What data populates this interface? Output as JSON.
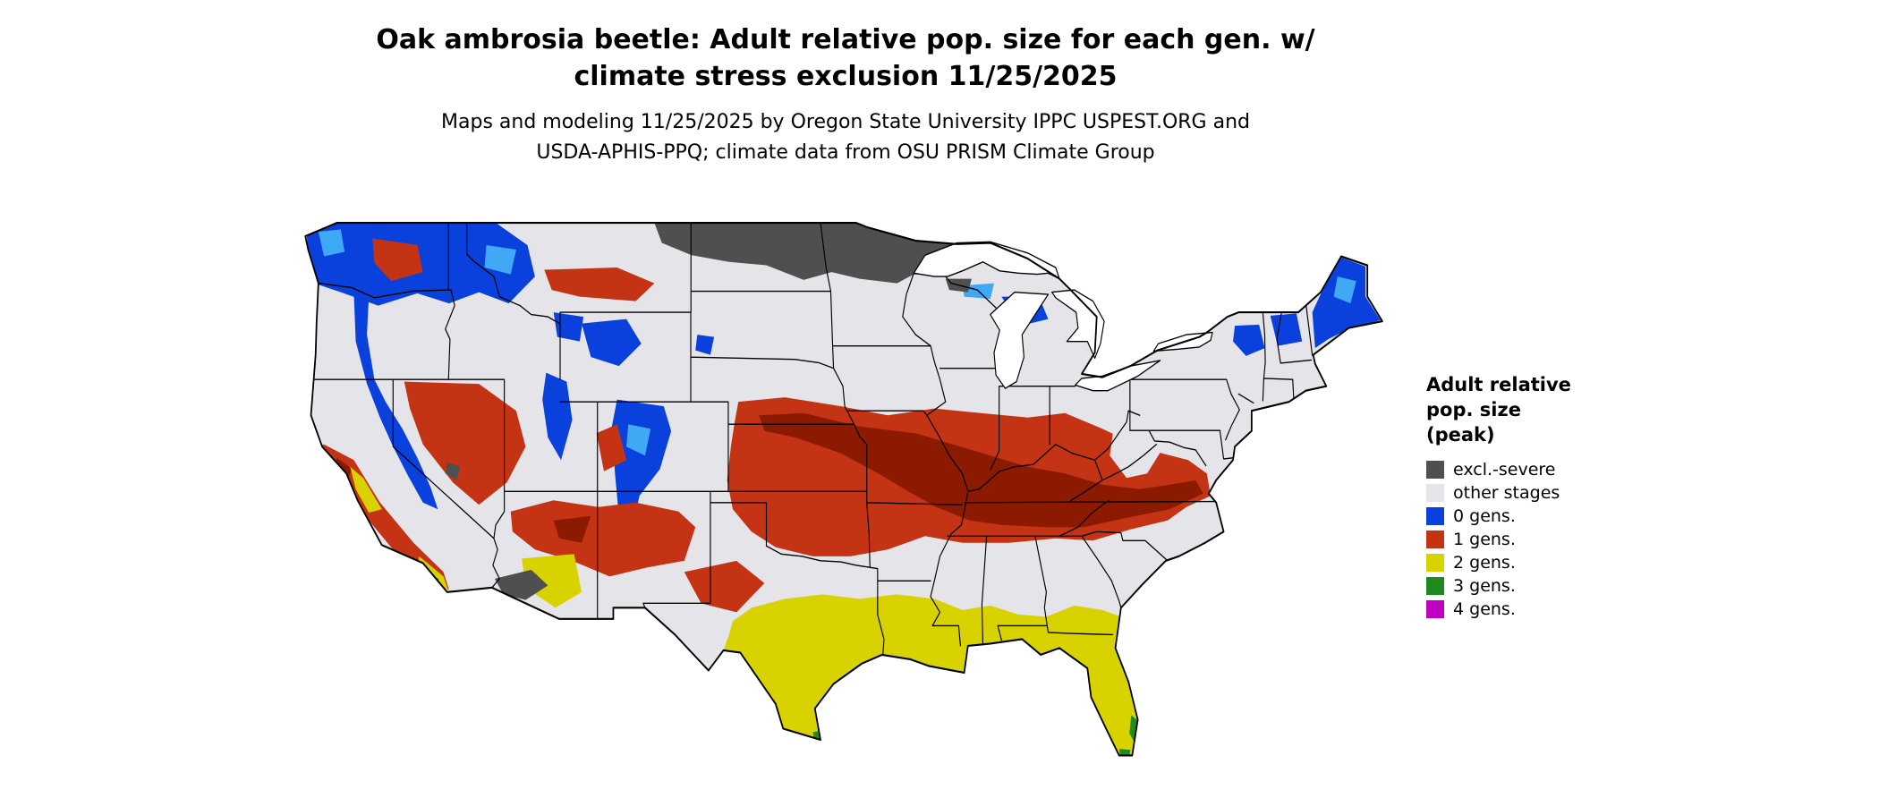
{
  "title": {
    "line1": "Oak ambrosia beetle: Adult relative pop. size for each gen. w/",
    "line2": "climate stress exclusion 11/25/2025"
  },
  "subtitle": {
    "line1": "Maps and modeling 11/25/2025 by Oregon State University IPPC USPEST.ORG and",
    "line2": "USDA-APHIS-PPQ; climate data from OSU PRISM Climate Group"
  },
  "legend": {
    "title_lines": [
      "Adult relative",
      "pop. size",
      "(peak)"
    ],
    "items": [
      {
        "label": "excl.-severe",
        "color": "#4f4f4f"
      },
      {
        "label": "other stages",
        "color": "#e5e5e9"
      },
      {
        "label": "0 gens.",
        "color": "#0a41dd"
      },
      {
        "label": "1 gens.",
        "color": "#c43414"
      },
      {
        "label": "2 gens.",
        "color": "#d8d200"
      },
      {
        "label": "3 gens.",
        "color": "#1f8b1f"
      },
      {
        "label": "4 gens.",
        "color": "#c000c0"
      }
    ]
  },
  "map": {
    "description": "Contiguous United States raster map of oak ambrosia beetle adult relative population size per generation",
    "base_land_color": "#e5e5e9",
    "border_color": "#000000",
    "lake_color": "#ffffff",
    "shade_colors": {
      "dark_red": "#8c1a00",
      "light_blue": "#3fa9f5"
    }
  }
}
